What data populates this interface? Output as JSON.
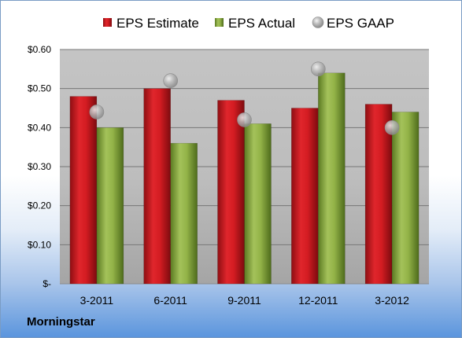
{
  "chart_data": {
    "type": "bar",
    "categories": [
      "3-2011",
      "6-2011",
      "9-2011",
      "12-2011",
      "3-2012"
    ],
    "series": [
      {
        "name": "EPS Estimate",
        "kind": "bar",
        "color": "#c8161d",
        "values": [
          0.48,
          0.5,
          0.47,
          0.45,
          0.46
        ]
      },
      {
        "name": "EPS Actual",
        "kind": "bar",
        "color": "#8aab3f",
        "values": [
          0.4,
          0.36,
          0.41,
          0.54,
          0.44
        ]
      },
      {
        "name": "EPS GAAP",
        "kind": "marker",
        "color": "#b7b7b7",
        "values": [
          0.44,
          0.52,
          0.42,
          0.55,
          0.4
        ]
      }
    ],
    "y_ticks": [
      {
        "value": 0.0,
        "label": "$-"
      },
      {
        "value": 0.1,
        "label": "$0.10"
      },
      {
        "value": 0.2,
        "label": "$0.20"
      },
      {
        "value": 0.3,
        "label": "$0.30"
      },
      {
        "value": 0.4,
        "label": "$0.40"
      },
      {
        "value": 0.5,
        "label": "$0.50"
      },
      {
        "value": 0.6,
        "label": "$0.60"
      }
    ],
    "ylim": [
      0,
      0.6
    ],
    "grid": true,
    "legend_position": "top"
  },
  "source": "Morningstar"
}
